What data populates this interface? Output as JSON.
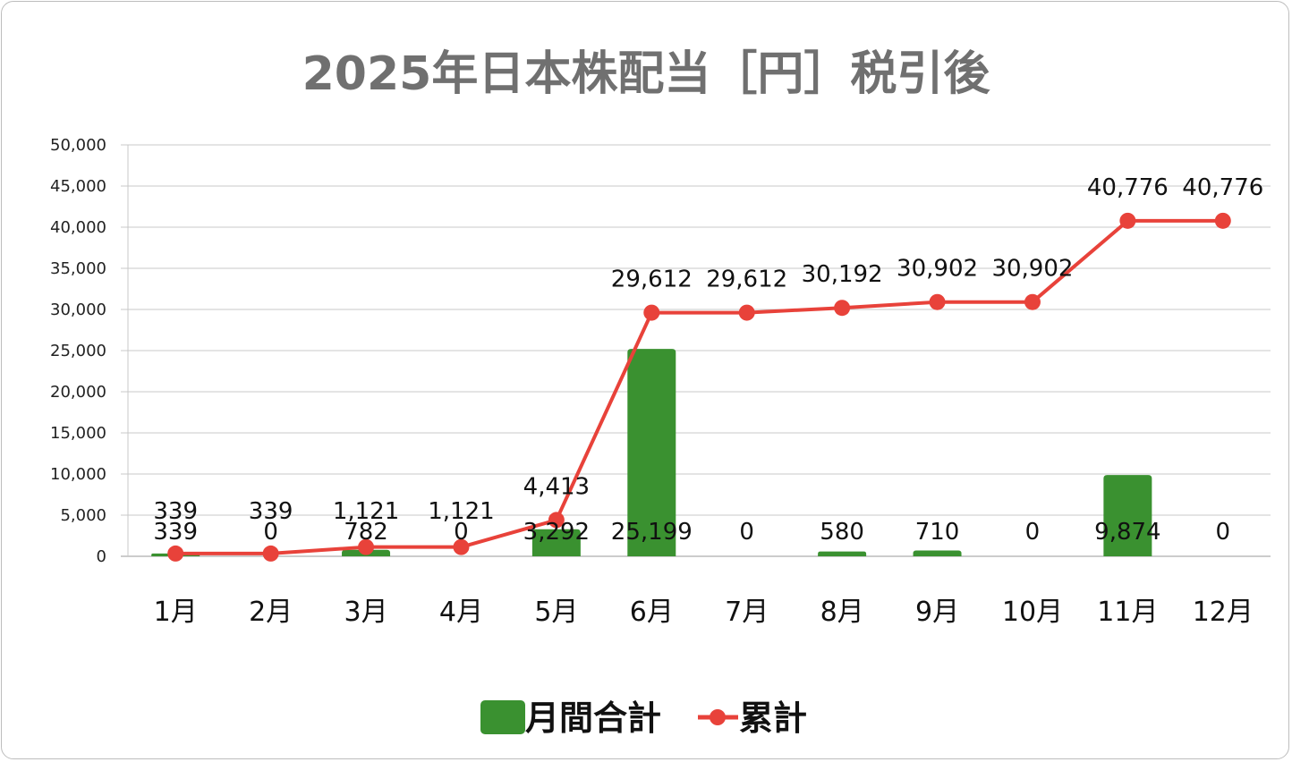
{
  "chart_data": {
    "type": "bar+line",
    "title": "2025年日本株配当［円］税引後",
    "categories": [
      "1月",
      "2月",
      "3月",
      "4月",
      "5月",
      "6月",
      "7月",
      "8月",
      "9月",
      "10月",
      "11月",
      "12月"
    ],
    "series": [
      {
        "name": "月間合計",
        "type": "bar",
        "color": "#3a9130",
        "values": [
          339,
          0,
          782,
          0,
          3292,
          25199,
          0,
          580,
          710,
          0,
          9874,
          0
        ],
        "labels": [
          "339",
          "0",
          "782",
          "0",
          "3,292",
          "25,199",
          "0",
          "580",
          "710",
          "0",
          "9,874",
          "0"
        ]
      },
      {
        "name": "累計",
        "type": "line",
        "color": "#e8423a",
        "values": [
          339,
          339,
          1121,
          1121,
          4413,
          29612,
          29612,
          30192,
          30902,
          30902,
          40776,
          40776
        ],
        "labels": [
          "339",
          "339",
          "1,121",
          "1,121",
          "4,413",
          "29,612",
          "29,612",
          "30,192",
          "30,902",
          "30,902",
          "40,776",
          "40,776"
        ]
      }
    ],
    "ylim": [
      0,
      50000
    ],
    "yticks": [
      "0",
      "5,000",
      "10,000",
      "15,000",
      "20,000",
      "25,000",
      "30,000",
      "35,000",
      "40,000",
      "45,000",
      "50,000"
    ],
    "grid": true,
    "legend_position": "bottom",
    "xlabel": "",
    "ylabel": ""
  }
}
